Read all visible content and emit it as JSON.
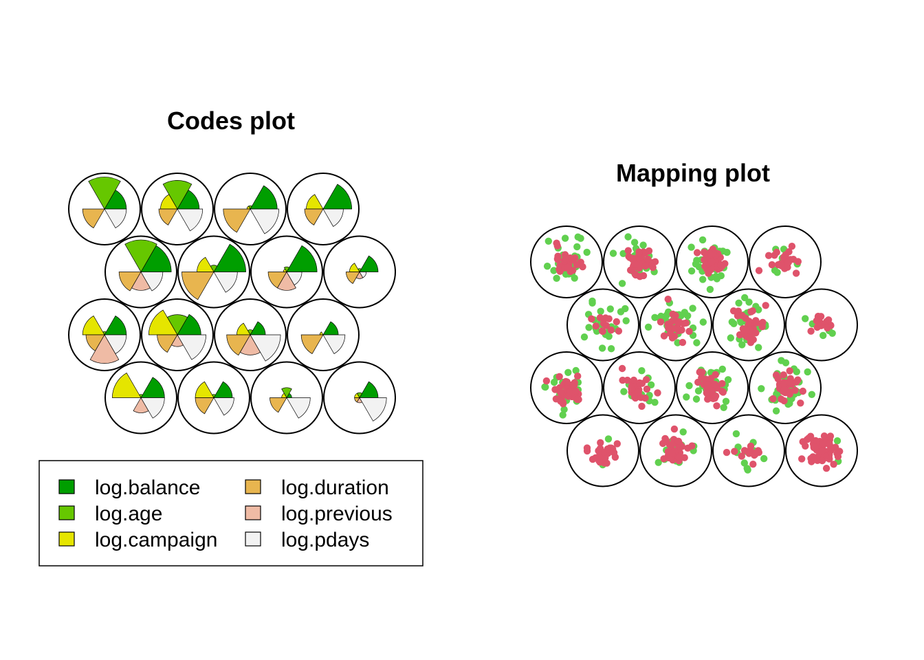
{
  "chart_data": [
    {
      "type": "som-codes",
      "title": "Codes plot",
      "grid": {
        "xdim": 4,
        "ydim": 4,
        "topology": "hexagonal"
      },
      "variables": [
        {
          "name": "log.balance",
          "color": "#009E00"
        },
        {
          "name": "log.age",
          "color": "#66C700"
        },
        {
          "name": "log.campaign",
          "color": "#E5E500"
        },
        {
          "name": "log.duration",
          "color": "#E8B54F"
        },
        {
          "name": "log.previous",
          "color": "#EFBBA5"
        },
        {
          "name": "log.pdays",
          "color": "#F2F2F2"
        }
      ],
      "legend": {
        "position": "bottom",
        "columns": 2,
        "frame": true
      },
      "units": [
        [
          0.65,
          0.95,
          0.0,
          0.65,
          0.0,
          0.65
        ],
        [
          0.65,
          0.85,
          0.5,
          0.55,
          0.0,
          0.75
        ],
        [
          0.8,
          0.1,
          0.1,
          0.8,
          0.0,
          0.85
        ],
        [
          0.85,
          0.0,
          0.5,
          0.55,
          0.0,
          0.6
        ],
        [
          0.9,
          0.95,
          0.0,
          0.65,
          0.55,
          0.65
        ],
        [
          0.95,
          0.2,
          0.5,
          0.95,
          0.0,
          0.7
        ],
        [
          0.9,
          0.15,
          0.1,
          0.55,
          0.55,
          0.45
        ],
        [
          0.55,
          0.1,
          0.3,
          0.4,
          0.2,
          0.2
        ],
        [
          0.65,
          0.1,
          0.65,
          0.55,
          0.85,
          0.65
        ],
        [
          0.7,
          0.6,
          0.85,
          0.6,
          0.35,
          0.85
        ],
        [
          0.45,
          0.15,
          0.4,
          0.7,
          0.6,
          0.9
        ],
        [
          0.45,
          0.0,
          0.1,
          0.65,
          0.0,
          0.65
        ],
        [
          0.7,
          0.1,
          0.85,
          0.0,
          0.45,
          0.7
        ],
        [
          0.55,
          0.1,
          0.55,
          0.55,
          0.0,
          0.6
        ],
        [
          0.15,
          0.3,
          0.15,
          0.5,
          0.0,
          0.7
        ],
        [
          0.55,
          0.15,
          0.15,
          0.15,
          0.15,
          0.8
        ]
      ]
    },
    {
      "type": "som-mapping",
      "title": "Mapping plot",
      "grid": {
        "xdim": 4,
        "ydim": 4,
        "topology": "hexagonal"
      },
      "point_colors": [
        "#61D04F",
        "#DF536B"
      ],
      "units": [
        {
          "green": 34,
          "red": 28
        },
        {
          "green": 26,
          "red": 40
        },
        {
          "green": 28,
          "red": 42
        },
        {
          "green": 10,
          "red": 25
        },
        {
          "green": 26,
          "red": 12
        },
        {
          "green": 34,
          "red": 22
        },
        {
          "green": 28,
          "red": 32
        },
        {
          "green": 6,
          "red": 16
        },
        {
          "green": 26,
          "red": 36
        },
        {
          "green": 14,
          "red": 26
        },
        {
          "green": 26,
          "red": 30
        },
        {
          "green": 32,
          "red": 28
        },
        {
          "green": 2,
          "red": 26
        },
        {
          "green": 22,
          "red": 38
        },
        {
          "green": 12,
          "red": 14
        },
        {
          "green": 2,
          "red": 72
        }
      ]
    }
  ]
}
